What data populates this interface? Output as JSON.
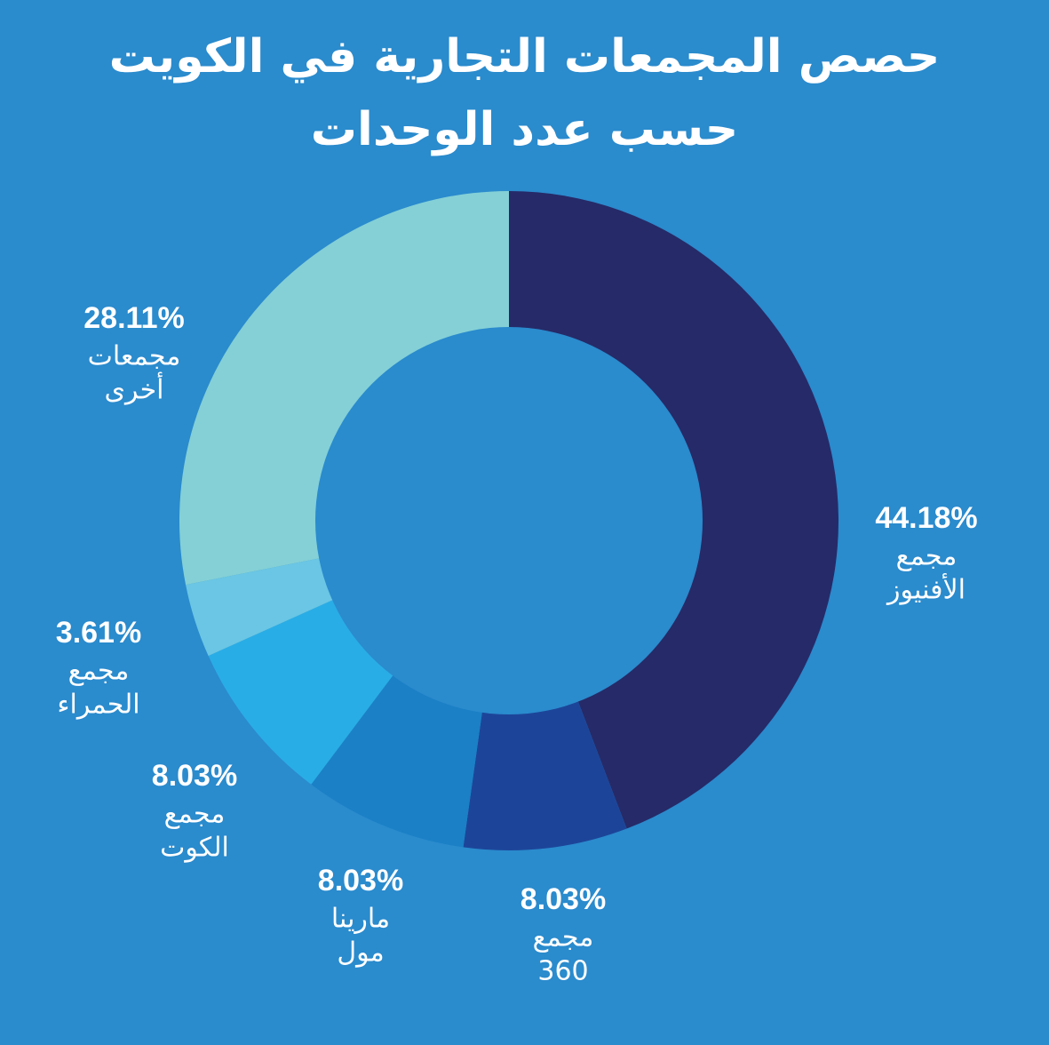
{
  "chart_data": {
    "type": "pie",
    "title_lines": [
      "حصص المجمعات التجارية في الكويت",
      "حسب عدد الوحدات"
    ],
    "colors": {
      "background": "#2a8bcd",
      "center": "#2a8bcd",
      "text": "#ffffff"
    },
    "slices": [
      {
        "id": "avenues",
        "percent": 44.18,
        "pct_label": "44.18%",
        "label_lines": [
          "مجمع",
          "الأفنيوز"
        ],
        "color": "#262a68"
      },
      {
        "id": "mall360",
        "percent": 8.03,
        "pct_label": "8.03%",
        "label_lines": [
          "مجمع",
          "360"
        ],
        "color": "#1c4599"
      },
      {
        "id": "marina",
        "percent": 8.03,
        "pct_label": "8.03%",
        "label_lines": [
          "مارينا",
          "مول"
        ],
        "color": "#1b80c6"
      },
      {
        "id": "kout",
        "percent": 8.03,
        "pct_label": "8.03%",
        "label_lines": [
          "مجمع",
          "الكوت"
        ],
        "color": "#29ade6"
      },
      {
        "id": "hamra",
        "percent": 3.61,
        "pct_label": "3.61%",
        "label_lines": [
          "مجمع",
          "الحمراء"
        ],
        "color": "#6ac6e4"
      },
      {
        "id": "others",
        "percent": 28.11,
        "pct_label": "28.11%",
        "label_lines": [
          "مجمعات",
          "أخرى"
        ],
        "color": "#84d0d6"
      }
    ]
  }
}
